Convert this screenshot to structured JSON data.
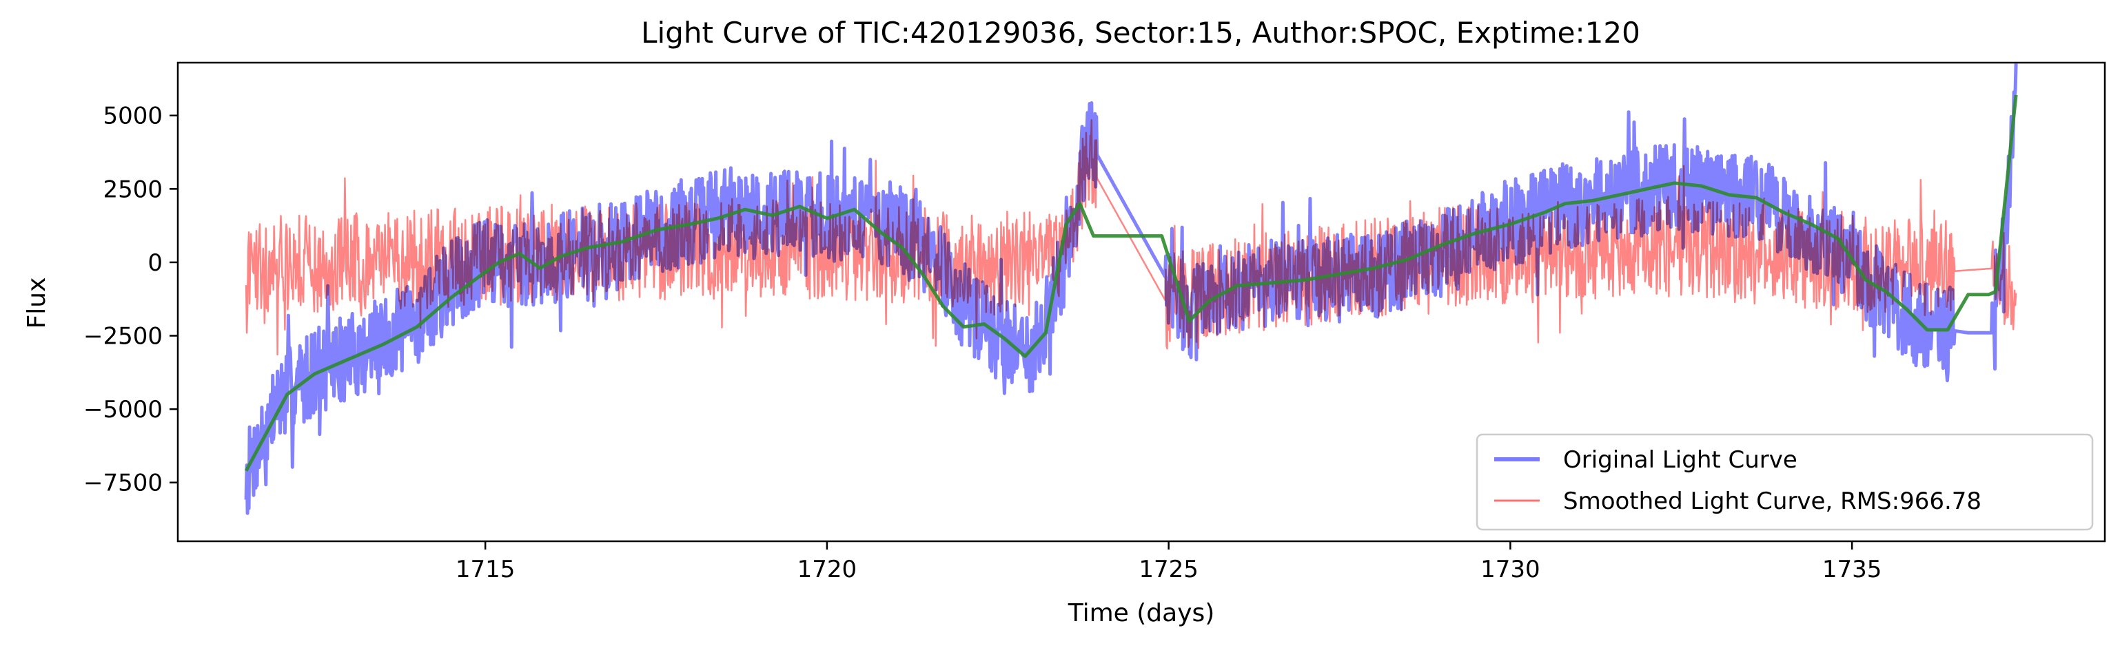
{
  "chart_data": {
    "type": "line",
    "title": "Light Curve of TIC:420129036, Sector:15, Author:SPOC, Exptime:120",
    "xlabel": "Time (days)",
    "ylabel": "Flux",
    "xlim": [
      1710.5,
      1738.7
    ],
    "ylim": [
      -9500,
      6800
    ],
    "x_ticks": [
      1715,
      1720,
      1725,
      1730,
      1735
    ],
    "y_ticks": [
      -7500,
      -5000,
      -2500,
      0,
      2500,
      5000
    ],
    "grid": false,
    "legend_position": "lower-right",
    "series": [
      {
        "name": "Original Light Curve",
        "color": "#7b7bff",
        "trend_x": [
          1711.5,
          1712.0,
          1712.5,
          1713.0,
          1713.5,
          1714.0,
          1714.5,
          1715.0,
          1715.5,
          1716.0,
          1716.5,
          1717.0,
          1717.5,
          1718.0,
          1718.5,
          1719.0,
          1719.5,
          1720.0,
          1720.5,
          1721.0,
          1721.3,
          1721.7,
          1722.0,
          1722.3,
          1722.6,
          1723.0,
          1723.3,
          1723.6,
          1723.8,
          1725.0,
          1725.3,
          1725.6,
          1726.0,
          1727.0,
          1728.0,
          1729.0,
          1729.5,
          1730.0,
          1730.5,
          1731.0,
          1731.5,
          1732.0,
          1732.5,
          1733.0,
          1733.5,
          1734.0,
          1734.5,
          1735.0,
          1735.5,
          1736.0,
          1736.4,
          1736.7,
          1737.1,
          1737.4
        ],
        "trend_y": [
          -7300,
          -4600,
          -3700,
          -3200,
          -2700,
          -2000,
          -700,
          0,
          -100,
          200,
          400,
          700,
          1100,
          1300,
          1800,
          1600,
          1800,
          1500,
          1600,
          1200,
          700,
          -200,
          -1500,
          -2200,
          -2600,
          -3000,
          -1400,
          1000,
          4300,
          -700,
          -1900,
          -1000,
          -800,
          -700,
          -400,
          300,
          900,
          1300,
          1700,
          2000,
          2200,
          2500,
          2500,
          2400,
          2300,
          1600,
          900,
          -200,
          -1200,
          -2200,
          -2300,
          -2400,
          -2400,
          5400
        ],
        "noise_amplitude": 1500,
        "stroke_width": 5
      },
      {
        "name": "Smoothed Light Curve, RMS:966.78",
        "color": "#ff7070",
        "trend_x": [
          1711.5,
          1712.0,
          1713.0,
          1714.0,
          1715.0,
          1716.0,
          1717.0,
          1718.0,
          1719.0,
          1720.0,
          1721.0,
          1722.0,
          1722.5,
          1723.0,
          1723.5,
          1723.8,
          1725.0,
          1725.3,
          1726.0,
          1727.0,
          1728.0,
          1729.0,
          1730.0,
          1731.0,
          1732.0,
          1733.0,
          1734.0,
          1735.0,
          1735.5,
          1736.0,
          1736.5,
          1737.1,
          1737.4
        ],
        "trend_y": [
          0,
          0,
          0,
          100,
          200,
          300,
          400,
          400,
          500,
          400,
          300,
          0,
          -200,
          100,
          400,
          3500,
          -1500,
          -1200,
          -800,
          -500,
          -200,
          200,
          300,
          400,
          600,
          400,
          200,
          -100,
          0,
          -200,
          -300,
          -200,
          -800
        ],
        "noise_amplitude": 1700,
        "stroke_width": 2.5
      },
      {
        "name": "",
        "color": "#2e8b2e",
        "x": [
          1711.5,
          1711.8,
          1712.1,
          1712.5,
          1713.0,
          1713.5,
          1714.0,
          1714.5,
          1714.9,
          1715.2,
          1715.5,
          1715.8,
          1716.1,
          1716.5,
          1717.0,
          1717.5,
          1718.0,
          1718.4,
          1718.8,
          1719.2,
          1719.6,
          1720.0,
          1720.4,
          1720.8,
          1721.1,
          1721.4,
          1721.7,
          1722.0,
          1722.3,
          1722.6,
          1722.9,
          1723.2,
          1723.5,
          1723.7,
          1723.9,
          1724.2,
          1724.6,
          1724.9,
          1725.3,
          1725.6,
          1726.0,
          1726.5,
          1727.0,
          1727.5,
          1728.0,
          1728.5,
          1729.0,
          1729.5,
          1730.0,
          1730.5,
          1730.8,
          1731.2,
          1731.6,
          1732.0,
          1732.4,
          1732.8,
          1733.2,
          1733.6,
          1734.0,
          1734.4,
          1734.8,
          1735.2,
          1735.5,
          1735.8,
          1736.1,
          1736.4,
          1736.7,
          1737.0,
          1737.1,
          1737.4
        ],
        "y": [
          -7100,
          -5800,
          -4500,
          -3800,
          -3300,
          -2800,
          -2200,
          -1200,
          -500,
          0,
          300,
          -200,
          200,
          500,
          700,
          1100,
          1300,
          1500,
          1800,
          1600,
          1900,
          1500,
          1800,
          1000,
          500,
          -400,
          -1500,
          -2200,
          -2100,
          -2600,
          -3200,
          -2400,
          1300,
          2000,
          900,
          900,
          900,
          900,
          -2000,
          -1300,
          -800,
          -700,
          -600,
          -400,
          -200,
          100,
          600,
          1000,
          1300,
          1700,
          2000,
          2100,
          2300,
          2500,
          2700,
          2600,
          2300,
          2200,
          1700,
          1300,
          800,
          -600,
          -1000,
          -1600,
          -2300,
          -2300,
          -1100,
          -1100,
          -1000,
          5700
        ],
        "stroke_width": 5
      }
    ]
  }
}
